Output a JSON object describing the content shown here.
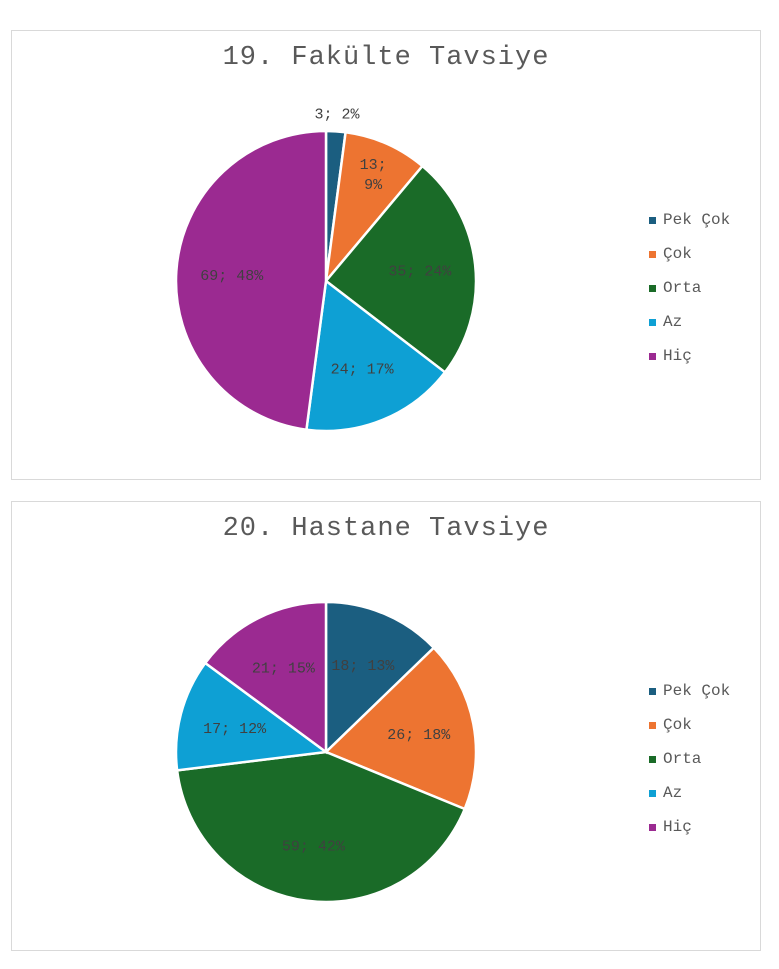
{
  "chart_data": [
    {
      "type": "pie",
      "title": "19. Fakülte Tavsiye",
      "categories": [
        "Pek Çok",
        "Çok",
        "Orta",
        "Az",
        "Hiç"
      ],
      "values": [
        3,
        13,
        35,
        24,
        69
      ],
      "labels": [
        "3; 2%",
        "13; 9%",
        "35; 24%",
        "24; 17%",
        "69; 48%"
      ],
      "colors": [
        "#1b5e80",
        "#ed7431",
        "#1a6b28",
        "#0ea0d4",
        "#9b2a91"
      ],
      "legend": "right"
    },
    {
      "type": "pie",
      "title": "20. Hastane Tavsiye",
      "categories": [
        "Pek Çok",
        "Çok",
        "Orta",
        "Az",
        "Hiç"
      ],
      "values": [
        18,
        26,
        59,
        17,
        21
      ],
      "labels": [
        "18; 13%",
        "26; 18%",
        "59; 42%",
        "17; 12%",
        "21; 15%"
      ],
      "colors": [
        "#1b5e80",
        "#ed7431",
        "#1a6b28",
        "#0ea0d4",
        "#9b2a91"
      ],
      "legend": "right"
    }
  ]
}
